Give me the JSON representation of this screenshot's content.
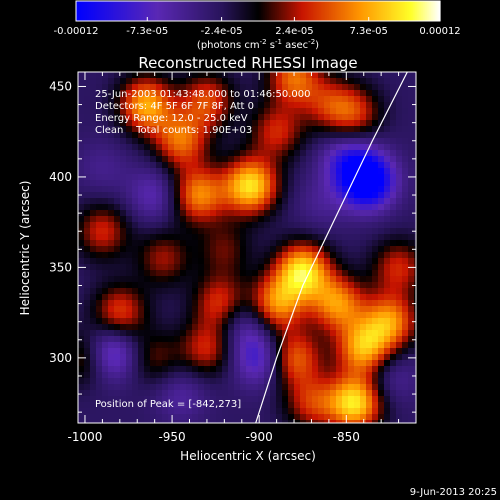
{
  "colorbar": {
    "tick_labels": [
      "-0.00012",
      "-7.3e-05",
      "-2.4e-05",
      "2.4e-05",
      "7.3e-05",
      "0.00012"
    ],
    "tick_values": [
      -0.00012,
      -7.3e-05,
      -2.4e-05,
      2.4e-05,
      7.3e-05,
      0.00012
    ],
    "range": [
      -0.00012,
      0.00012
    ],
    "units_prefix": "(photons cm",
    "units_exp1": "-2",
    "units_mid": " s",
    "units_exp2": "-1",
    "units_mid2": " asec",
    "units_exp3": "-2",
    "units_suffix": ")",
    "colormap": [
      "#0000ff",
      "#000000",
      "#ff0000",
      "#ffa500",
      "#ffff00",
      "#ffffff"
    ]
  },
  "chart_data": {
    "type": "heatmap",
    "title": "Reconstructed RHESSI Image",
    "xlabel": "Heliocentric X (arcsec)",
    "ylabel": "Heliocentric Y (arcsec)",
    "xlim": [
      -1004,
      -810
    ],
    "ylim": [
      264,
      458
    ],
    "xticks": [
      -1000,
      -950,
      -900,
      -850
    ],
    "xtick_labels": [
      "-1000",
      "-950",
      "-900",
      "-850"
    ],
    "yticks": [
      300,
      350,
      400,
      450
    ],
    "ytick_labels": [
      "300",
      "350",
      "400",
      "450"
    ],
    "annotations": [
      "25-Jun-2003 01:43:48.000 to 01:46:50.000",
      "Detectors: 4F 5F 6F 7F 8F, Att 0",
      "Energy Range: 12.0 - 25.0 keV",
      "Clean    Total counts: 1.90E+03"
    ],
    "peak_label": "Position of Peak = [-842,273]",
    "peak_position": [
      -842,
      273
    ],
    "limb_points": [
      [
        -902,
        264
      ],
      [
        -890,
        300
      ],
      [
        -875,
        340
      ],
      [
        -855,
        380
      ],
      [
        -835,
        420
      ],
      [
        -815,
        458
      ]
    ],
    "sources": [
      {
        "x": -965,
        "y": 440,
        "value": 0.0001
      },
      {
        "x": -945,
        "y": 420,
        "value": 8e-05
      },
      {
        "x": -930,
        "y": 442,
        "value": 7e-05
      },
      {
        "x": -935,
        "y": 390,
        "value": 9e-05
      },
      {
        "x": -905,
        "y": 395,
        "value": 0.00012
      },
      {
        "x": -880,
        "y": 455,
        "value": 8e-05
      },
      {
        "x": -860,
        "y": 440,
        "value": 5e-05
      },
      {
        "x": -890,
        "y": 425,
        "value": 6e-05
      },
      {
        "x": -955,
        "y": 355,
        "value": 5e-05
      },
      {
        "x": -990,
        "y": 370,
        "value": 6e-05
      },
      {
        "x": -980,
        "y": 325,
        "value": 7e-05
      },
      {
        "x": -960,
        "y": 300,
        "value": 4e-05
      },
      {
        "x": -1000,
        "y": 300,
        "value": 5e-05
      },
      {
        "x": -875,
        "y": 348,
        "value": 0.00012
      },
      {
        "x": -890,
        "y": 330,
        "value": 9e-05
      },
      {
        "x": -880,
        "y": 300,
        "value": 8e-05
      },
      {
        "x": -930,
        "y": 305,
        "value": 6e-05
      },
      {
        "x": -922,
        "y": 330,
        "value": 7e-05
      },
      {
        "x": -855,
        "y": 330,
        "value": 9e-05
      },
      {
        "x": -840,
        "y": 305,
        "value": 0.0001
      },
      {
        "x": -825,
        "y": 320,
        "value": 9e-05
      },
      {
        "x": -845,
        "y": 275,
        "value": 0.00012
      },
      {
        "x": -870,
        "y": 275,
        "value": 6e-05
      },
      {
        "x": -820,
        "y": 350,
        "value": 6e-05
      },
      {
        "x": -845,
        "y": 435,
        "value": 6e-05
      },
      {
        "x": -920,
        "y": 360,
        "value": 4e-05
      },
      {
        "x": -838,
        "y": 398,
        "value": -0.00012
      },
      {
        "x": -850,
        "y": 410,
        "value": -5e-05
      },
      {
        "x": -985,
        "y": 303,
        "value": -7e-05
      },
      {
        "x": -900,
        "y": 300,
        "value": -6e-05
      },
      {
        "x": -910,
        "y": 320,
        "value": -4e-05
      },
      {
        "x": -960,
        "y": 390,
        "value": -4e-05
      },
      {
        "x": -945,
        "y": 280,
        "value": -3e-05
      },
      {
        "x": -990,
        "y": 405,
        "value": -2e-05
      },
      {
        "x": -865,
        "y": 385,
        "value": -2e-05
      },
      {
        "x": -825,
        "y": 290,
        "value": -3e-05
      }
    ]
  },
  "footer": {
    "date": "9-Jun-2013 20:25"
  }
}
